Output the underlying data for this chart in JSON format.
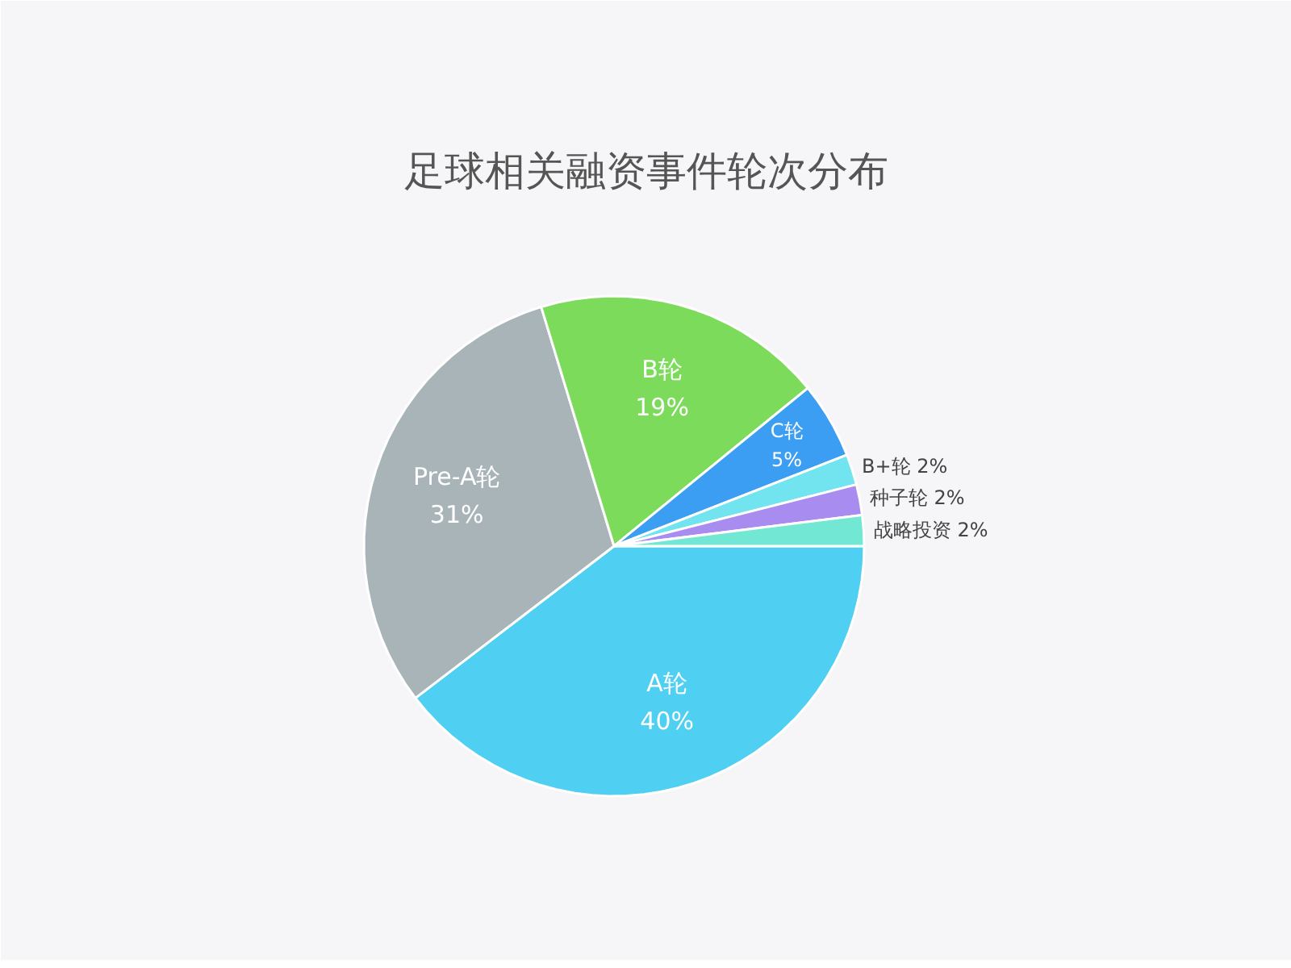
{
  "chart_data": {
    "type": "pie",
    "title": "足球相关融资事件轮次分布",
    "categories": [
      "A轮",
      "Pre-A轮",
      "B轮",
      "C轮",
      "B+轮",
      "种子轮",
      "战略投资"
    ],
    "values": [
      40,
      31,
      19,
      5,
      2,
      2,
      2
    ],
    "colors": [
      "#4fcff2",
      "#a9b4b8",
      "#7ddb5c",
      "#3c9ef2",
      "#72e4f0",
      "#a98cf0",
      "#72e8d4"
    ],
    "value_labels": [
      "40%",
      "31%",
      "19%",
      "5%",
      "2%",
      "2%",
      "2%"
    ]
  }
}
